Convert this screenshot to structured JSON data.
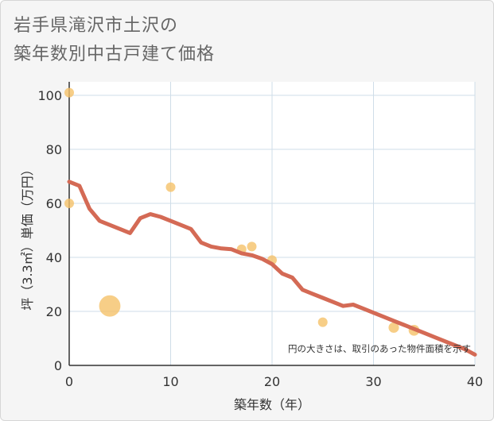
{
  "title": {
    "line1": "岩手県滝沢市土沢の",
    "line2": "築年数別中古戸建て価格"
  },
  "chart_data": {
    "type": "scatter",
    "xlabel": "築年数（年）",
    "ylabel": "坪（3.3㎡）単価（万円）",
    "xlim": [
      0,
      40
    ],
    "ylim": [
      0,
      105
    ],
    "xticks": [
      "0",
      "10",
      "20",
      "30",
      "40"
    ],
    "yticks": [
      "0",
      "20",
      "40",
      "60",
      "80",
      "100"
    ],
    "xtick_values": [
      0,
      10,
      20,
      30,
      40
    ],
    "ytick_values": [
      0,
      20,
      40,
      60,
      80,
      100
    ],
    "grid": true,
    "note": "円の大きさは、取引のあった物件面積を示す",
    "colors": {
      "points": "#f5c269",
      "trend": "#d46a55",
      "grid": "#cfdde8"
    },
    "points": [
      {
        "x": 0,
        "y": 101,
        "size": 1
      },
      {
        "x": 0,
        "y": 60,
        "size": 1
      },
      {
        "x": 4,
        "y": 22,
        "size": 5
      },
      {
        "x": 10,
        "y": 66,
        "size": 1
      },
      {
        "x": 17,
        "y": 43,
        "size": 1
      },
      {
        "x": 18,
        "y": 44,
        "size": 1
      },
      {
        "x": 20,
        "y": 39,
        "size": 1
      },
      {
        "x": 25,
        "y": 16,
        "size": 1
      },
      {
        "x": 32,
        "y": 14,
        "size": 1.2
      },
      {
        "x": 34,
        "y": 13,
        "size": 1.3
      }
    ],
    "trend": {
      "x": [
        0,
        1,
        2,
        3,
        4,
        5,
        6,
        7,
        8,
        9,
        10,
        11,
        12,
        13,
        14,
        15,
        16,
        17,
        18,
        19,
        20,
        21,
        22,
        23,
        24,
        25,
        26,
        27,
        28,
        29,
        30,
        31,
        32,
        33,
        34,
        35,
        36,
        37,
        38,
        39,
        40
      ],
      "y": [
        68,
        66.5,
        58,
        53.5,
        52,
        50.5,
        49,
        54.5,
        56,
        55,
        53.5,
        52,
        50.5,
        45.5,
        44,
        43.3,
        43,
        41.5,
        40.8,
        39.5,
        37.5,
        34,
        32.5,
        28,
        26.5,
        25,
        23.5,
        22,
        22.5,
        21,
        19.5,
        18,
        16.5,
        15,
        13.5,
        12,
        10.5,
        9,
        7.5,
        6,
        4
      ]
    }
  }
}
